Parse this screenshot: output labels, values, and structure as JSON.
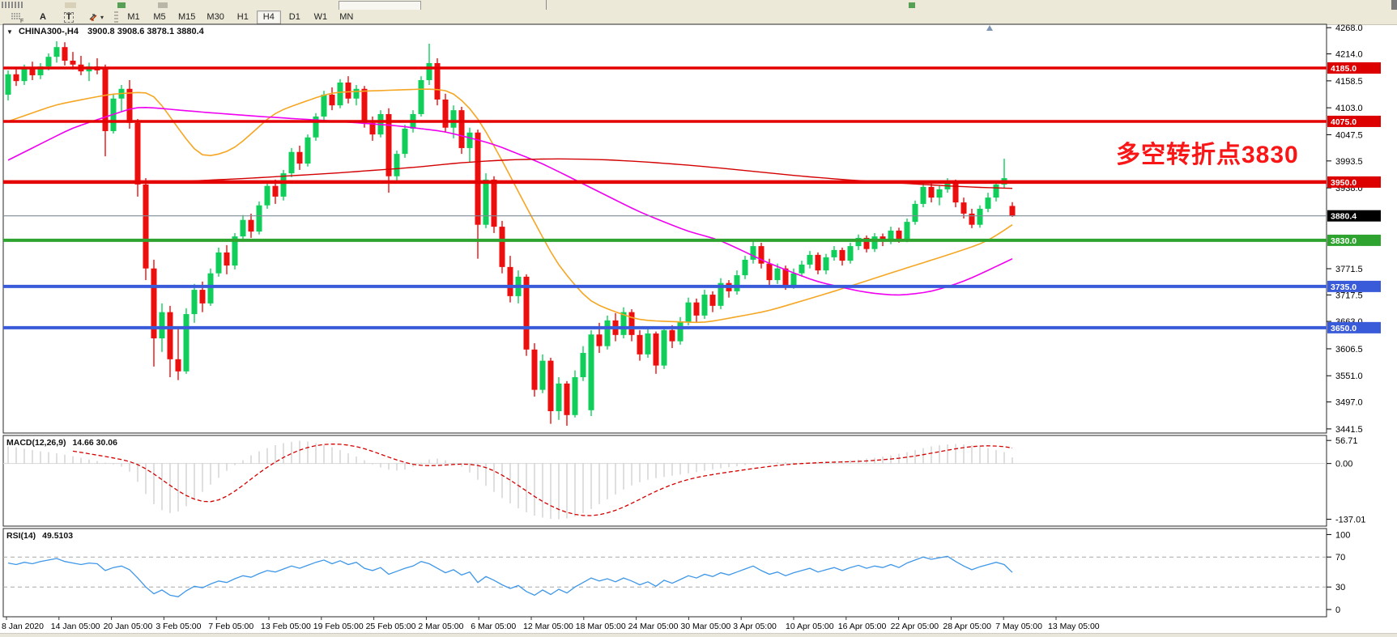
{
  "toolbar": {
    "icon_f_label": "F",
    "tool_a_label": "A",
    "tool_t_label": "T",
    "dropdown_caret": "▾",
    "timeframes": [
      "M1",
      "M5",
      "M15",
      "M30",
      "H1",
      "H4",
      "D1",
      "W1",
      "MN"
    ],
    "active_timeframe": "H4"
  },
  "chart": {
    "title_caret": "▼",
    "annotation": {
      "text": "多空转折点3830",
      "color": "#F81616"
    }
  },
  "chart_data": {
    "type": "candlestick",
    "symbol": "CHINA300-",
    "timeframe": "H4",
    "title": {
      "symbol_period": "CHINA300-,H4",
      "ohlc": "3900.8 3908.6 3878.1 3880.4"
    },
    "current_price": 3880.4,
    "ylim": [
      3433,
      4275
    ],
    "y_ticks": [
      "4268.0",
      "4214.0",
      "4158.5",
      "4103.0",
      "4047.5",
      "3993.5",
      "3938.0",
      "3771.5",
      "3717.5",
      "3663.0",
      "3606.5",
      "3551.0",
      "3497.0",
      "3441.5"
    ],
    "hlines": [
      {
        "price": 4185.0,
        "label": "4185.0",
        "color": "#E40000",
        "width": 3.5,
        "badge": "#DD0000"
      },
      {
        "price": 4075.0,
        "label": "4075.0",
        "color": "#E40000",
        "width": 3.5,
        "badge": "#DD0000"
      },
      {
        "price": 3950.0,
        "label": "3950.0",
        "color": "#E40000",
        "width": 4.5,
        "badge": "#DD0000"
      },
      {
        "price": 3880.4,
        "label": "3880.4",
        "color": "#7D8B97",
        "width": 1.2,
        "badge": "#000000"
      },
      {
        "price": 3830.0,
        "label": "3830.0",
        "color": "#2FA32F",
        "width": 4,
        "badge": "#2FA32F"
      },
      {
        "price": 3735.0,
        "label": "3735.0",
        "color": "#3A5BD9",
        "width": 4,
        "badge": "#3A5BD9"
      },
      {
        "price": 3650.0,
        "label": "3650.0",
        "color": "#3A5BD9",
        "width": 4,
        "badge": "#3A5BD9"
      }
    ],
    "x_labels": [
      "8 Jan 2020",
      "14 Jan 05:00",
      "20 Jan 05:00",
      "3 Feb 05:00",
      "7 Feb 05:00",
      "13 Feb 05:00",
      "19 Feb 05:00",
      "25 Feb 05:00",
      "2 Mar 05:00",
      "6 Mar 05:00",
      "12 Mar 05:00",
      "18 Mar 05:00",
      "24 Mar 05:00",
      "30 Mar 05:00",
      "3 Apr 05:00",
      "10 Apr 05:00",
      "16 Apr 05:00",
      "22 Apr 05:00",
      "28 Apr 05:00",
      "7 May 05:00",
      "13 May 05:00"
    ],
    "colors": {
      "up": "#0FCF5A",
      "down": "#ED0E0E",
      "ma_orange": "#F5A623",
      "ma_magenta": "#F000F0",
      "ma_red": "#D40000",
      "macd_hist": "#BFBFBF",
      "macd_signal": "#D40000",
      "rsi_line": "#3E97E8"
    },
    "candles": [
      [
        4130,
        4180,
        4118,
        4172
      ],
      [
        4172,
        4185,
        4148,
        4158
      ],
      [
        4158,
        4192,
        4150,
        4186
      ],
      [
        4186,
        4198,
        4160,
        4170
      ],
      [
        4170,
        4195,
        4162,
        4188
      ],
      [
        4188,
        4215,
        4180,
        4208
      ],
      [
        4208,
        4240,
        4196,
        4228
      ],
      [
        4228,
        4238,
        4190,
        4200
      ],
      [
        4200,
        4218,
        4182,
        4192
      ],
      [
        4192,
        4210,
        4170,
        4178
      ],
      [
        4178,
        4196,
        4158,
        4188
      ],
      [
        4188,
        4205,
        4172,
        4180
      ],
      [
        4185,
        4192,
        4003,
        4055
      ],
      [
        4055,
        4130,
        4050,
        4122
      ],
      [
        4122,
        4150,
        4095,
        4142
      ],
      [
        4142,
        4160,
        4060,
        4072
      ],
      [
        4072,
        4080,
        3920,
        3945
      ],
      [
        3945,
        3958,
        3748,
        3772
      ],
      [
        3772,
        3790,
        3570,
        3628
      ],
      [
        3628,
        3700,
        3600,
        3682
      ],
      [
        3682,
        3695,
        3548,
        3585
      ],
      [
        3585,
        3648,
        3542,
        3560
      ],
      [
        3560,
        3690,
        3555,
        3678
      ],
      [
        3678,
        3740,
        3660,
        3728
      ],
      [
        3728,
        3745,
        3682,
        3700
      ],
      [
        3700,
        3772,
        3695,
        3762
      ],
      [
        3762,
        3815,
        3755,
        3805
      ],
      [
        3805,
        3820,
        3760,
        3778
      ],
      [
        3778,
        3845,
        3770,
        3838
      ],
      [
        3838,
        3882,
        3830,
        3872
      ],
      [
        3872,
        3885,
        3835,
        3848
      ],
      [
        3848,
        3910,
        3842,
        3902
      ],
      [
        3902,
        3950,
        3895,
        3942
      ],
      [
        3942,
        3955,
        3905,
        3920
      ],
      [
        3920,
        3975,
        3912,
        3968
      ],
      [
        3968,
        4020,
        3960,
        4012
      ],
      [
        4012,
        4025,
        3975,
        3988
      ],
      [
        3988,
        4048,
        3982,
        4042
      ],
      [
        4042,
        4092,
        4035,
        4085
      ],
      [
        4085,
        4138,
        4078,
        4130
      ],
      [
        4130,
        4145,
        4098,
        4108
      ],
      [
        4108,
        4162,
        4102,
        4155
      ],
      [
        4155,
        4168,
        4112,
        4122
      ],
      [
        4122,
        4150,
        4108,
        4142
      ],
      [
        4142,
        4148,
        4062,
        4072
      ],
      [
        4072,
        4085,
        4035,
        4048
      ],
      [
        4048,
        4098,
        4042,
        4090
      ],
      [
        4090,
        4102,
        3928,
        3962
      ],
      [
        3962,
        4015,
        3950,
        4008
      ],
      [
        4008,
        4068,
        4000,
        4060
      ],
      [
        4060,
        4098,
        4052,
        4090
      ],
      [
        4090,
        4168,
        4085,
        4160
      ],
      [
        4160,
        4235,
        4150,
        4195
      ],
      [
        4195,
        4205,
        4108,
        4120
      ],
      [
        4120,
        4132,
        4052,
        4062
      ],
      [
        4062,
        4108,
        4040,
        4098
      ],
      [
        4098,
        4105,
        4008,
        4020
      ],
      [
        4020,
        4062,
        3990,
        4052
      ],
      [
        4052,
        4058,
        3792,
        3862
      ],
      [
        3862,
        3968,
        3855,
        3955
      ],
      [
        3955,
        3962,
        3845,
        3858
      ],
      [
        3858,
        3870,
        3762,
        3775
      ],
      [
        3775,
        3798,
        3702,
        3715
      ],
      [
        3715,
        3768,
        3700,
        3755
      ],
      [
        3755,
        3760,
        3592,
        3605
      ],
      [
        3605,
        3618,
        3508,
        3522
      ],
      [
        3522,
        3595,
        3515,
        3582
      ],
      [
        3582,
        3588,
        3452,
        3478
      ],
      [
        3478,
        3548,
        3460,
        3535
      ],
      [
        3535,
        3540,
        3448,
        3470
      ],
      [
        3470,
        3562,
        3465,
        3548
      ],
      [
        3548,
        3612,
        3540,
        3598
      ],
      [
        3480,
        3645,
        3468,
        3636
      ],
      [
        3636,
        3660,
        3598,
        3612
      ],
      [
        3612,
        3675,
        3605,
        3665
      ],
      [
        3665,
        3680,
        3622,
        3635
      ],
      [
        3635,
        3692,
        3628,
        3682
      ],
      [
        3682,
        3688,
        3622,
        3635
      ],
      [
        3635,
        3645,
        3582,
        3595
      ],
      [
        3595,
        3648,
        3588,
        3638
      ],
      [
        3638,
        3642,
        3555,
        3572
      ],
      [
        3572,
        3652,
        3565,
        3645
      ],
      [
        3645,
        3655,
        3608,
        3622
      ],
      [
        3622,
        3672,
        3615,
        3662
      ],
      [
        3662,
        3712,
        3655,
        3702
      ],
      [
        3702,
        3710,
        3662,
        3675
      ],
      [
        3675,
        3728,
        3668,
        3718
      ],
      [
        3718,
        3725,
        3682,
        3695
      ],
      [
        3695,
        3752,
        3688,
        3742
      ],
      [
        3742,
        3748,
        3712,
        3725
      ],
      [
        3725,
        3768,
        3718,
        3758
      ],
      [
        3758,
        3798,
        3750,
        3790
      ],
      [
        3790,
        3828,
        3782,
        3818
      ],
      [
        3818,
        3825,
        3772,
        3782
      ],
      [
        3782,
        3792,
        3738,
        3748
      ],
      [
        3748,
        3782,
        3740,
        3772
      ],
      [
        3772,
        3778,
        3728,
        3738
      ],
      [
        3738,
        3772,
        3730,
        3762
      ],
      [
        3762,
        3788,
        3755,
        3780
      ],
      [
        3780,
        3808,
        3772,
        3800
      ],
      [
        3800,
        3805,
        3760,
        3768
      ],
      [
        3768,
        3802,
        3760,
        3795
      ],
      [
        3795,
        3818,
        3788,
        3810
      ],
      [
        3810,
        3815,
        3778,
        3788
      ],
      [
        3788,
        3825,
        3782,
        3818
      ],
      [
        3818,
        3842,
        3810,
        3835
      ],
      [
        3835,
        3840,
        3805,
        3812
      ],
      [
        3812,
        3845,
        3806,
        3838
      ],
      [
        3838,
        3844,
        3818,
        3828
      ],
      [
        3828,
        3858,
        3822,
        3850
      ],
      [
        3850,
        3856,
        3825,
        3832
      ],
      [
        3832,
        3875,
        3826,
        3868
      ],
      [
        3868,
        3912,
        3862,
        3905
      ],
      [
        3905,
        3948,
        3898,
        3940
      ],
      [
        3940,
        3952,
        3908,
        3918
      ],
      [
        3918,
        3942,
        3902,
        3935
      ],
      [
        3935,
        3958,
        3928,
        3948
      ],
      [
        3948,
        3955,
        3898,
        3908
      ],
      [
        3908,
        3918,
        3875,
        3885
      ],
      [
        3885,
        3895,
        3855,
        3862
      ],
      [
        3862,
        3902,
        3856,
        3895
      ],
      [
        3895,
        3928,
        3888,
        3918
      ],
      [
        3918,
        3952,
        3910,
        3945
      ],
      [
        3945,
        3998,
        3938,
        3958
      ],
      [
        3900.8,
        3908.6,
        3878.1,
        3880.4
      ]
    ],
    "ma_lines": [
      {
        "name": "ma-orange",
        "color": "#F5A623",
        "width": 1.6,
        "points": [
          [
            0,
            4075
          ],
          [
            6,
            4110
          ],
          [
            13,
            4132
          ],
          [
            18,
            4136
          ],
          [
            21,
            4060
          ],
          [
            24,
            3995
          ],
          [
            28,
            4018
          ],
          [
            33,
            4095
          ],
          [
            40,
            4135
          ],
          [
            52,
            4142
          ],
          [
            55,
            4138
          ],
          [
            58,
            4085
          ],
          [
            61,
            3995
          ],
          [
            64,
            3898
          ],
          [
            68,
            3775
          ],
          [
            72,
            3700
          ],
          [
            78,
            3665
          ],
          [
            86,
            3660
          ],
          [
            94,
            3685
          ],
          [
            102,
            3725
          ],
          [
            110,
            3768
          ],
          [
            117,
            3805
          ],
          [
            121,
            3828
          ],
          [
            124,
            3862
          ]
        ]
      },
      {
        "name": "ma-magenta",
        "color": "#F000F0",
        "width": 1.6,
        "points": [
          [
            0,
            3995
          ],
          [
            8,
            4062
          ],
          [
            16,
            4106
          ],
          [
            24,
            4094
          ],
          [
            32,
            4084
          ],
          [
            40,
            4076
          ],
          [
            48,
            4066
          ],
          [
            54,
            4054
          ],
          [
            60,
            4028
          ],
          [
            66,
            3988
          ],
          [
            72,
            3938
          ],
          [
            78,
            3888
          ],
          [
            84,
            3848
          ],
          [
            88,
            3830
          ],
          [
            94,
            3782
          ],
          [
            100,
            3744
          ],
          [
            106,
            3722
          ],
          [
            110,
            3716
          ],
          [
            114,
            3724
          ],
          [
            118,
            3745
          ],
          [
            121,
            3768
          ],
          [
            124,
            3792
          ]
        ]
      },
      {
        "name": "ma-red",
        "color": "#D40000",
        "width": 1.4,
        "points": [
          [
            10,
            3948
          ],
          [
            20,
            3950
          ],
          [
            30,
            3958
          ],
          [
            40,
            3968
          ],
          [
            50,
            3980
          ],
          [
            56,
            3990
          ],
          [
            62,
            3996
          ],
          [
            68,
            3998
          ],
          [
            74,
            3996
          ],
          [
            80,
            3990
          ],
          [
            86,
            3982
          ],
          [
            92,
            3972
          ],
          [
            98,
            3962
          ],
          [
            104,
            3954
          ],
          [
            110,
            3948
          ],
          [
            116,
            3942
          ],
          [
            120,
            3939
          ],
          [
            124,
            3937
          ]
        ]
      }
    ],
    "macd": {
      "label": "MACD(12,26,9)",
      "values": "14.66 30.06",
      "ylim": [
        -154,
        69
      ],
      "ticks": [
        "56.71",
        "0.00",
        "-137.01"
      ],
      "tick_values": [
        56.71,
        0,
        -137.01
      ],
      "hist": [
        42,
        40,
        36,
        33,
        30,
        28,
        25,
        22,
        18,
        14,
        10,
        6,
        2,
        -2,
        -8,
        -20,
        -45,
        -75,
        -100,
        -115,
        -122,
        -118,
        -105,
        -88,
        -70,
        -52,
        -35,
        -18,
        -4,
        8,
        20,
        30,
        38,
        45,
        50,
        53,
        56,
        54,
        50,
        45,
        40,
        33,
        25,
        17,
        8,
        -2,
        -10,
        -15,
        -17,
        -15,
        -8,
        2,
        10,
        12,
        8,
        2,
        -8,
        -22,
        -40,
        -55,
        -70,
        -85,
        -98,
        -110,
        -120,
        -128,
        -133,
        -136,
        -137,
        -135,
        -130,
        -122,
        -112,
        -100,
        -88,
        -76,
        -64,
        -54,
        -46,
        -40,
        -36,
        -33,
        -30,
        -27,
        -24,
        -21,
        -18,
        -15,
        -12,
        -9,
        -7,
        -4,
        -2,
        0,
        2,
        3,
        3,
        2,
        2,
        3,
        4,
        5,
        6,
        7,
        8,
        10,
        12,
        14,
        17,
        20,
        24,
        28,
        33,
        38,
        42,
        45,
        47,
        48,
        47,
        45,
        42,
        38,
        33,
        28,
        15
      ]
    },
    "rsi": {
      "label": "RSI(14)",
      "value": "49.5103",
      "ylim": [
        -9.7,
        108
      ],
      "ticks": [
        "100",
        "70",
        "30",
        "0"
      ],
      "tick_values": [
        100,
        70,
        30,
        0
      ],
      "levels": [
        70,
        30
      ],
      "values": [
        62,
        60,
        63,
        61,
        64,
        66,
        68,
        64,
        62,
        60,
        62,
        61,
        52,
        56,
        58,
        53,
        42,
        30,
        21,
        26,
        19,
        17,
        25,
        31,
        29,
        34,
        38,
        36,
        41,
        45,
        43,
        48,
        52,
        50,
        54,
        58,
        55,
        59,
        63,
        66,
        61,
        65,
        60,
        63,
        55,
        52,
        56,
        47,
        51,
        55,
        58,
        64,
        61,
        55,
        49,
        53,
        46,
        50,
        36,
        44,
        39,
        33,
        28,
        32,
        24,
        19,
        26,
        20,
        27,
        22,
        30,
        36,
        42,
        38,
        41,
        37,
        42,
        38,
        33,
        37,
        31,
        39,
        35,
        40,
        45,
        42,
        47,
        44,
        49,
        46,
        50,
        54,
        58,
        52,
        47,
        50,
        45,
        49,
        52,
        55,
        50,
        53,
        56,
        52,
        56,
        59,
        55,
        58,
        56,
        60,
        56,
        62,
        66,
        70,
        67,
        69,
        71,
        64,
        58,
        53,
        57,
        60,
        63,
        60,
        49.5
      ]
    }
  }
}
